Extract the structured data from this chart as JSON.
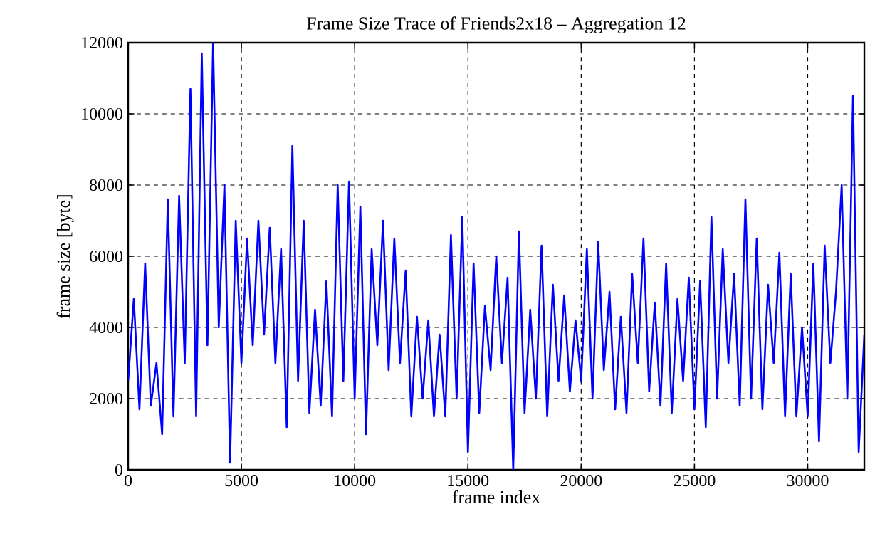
{
  "chart_data": {
    "type": "line",
    "title": "Frame Size Trace of Friends2x18 – Aggregation 12",
    "xlabel": "frame index",
    "ylabel": "frame size [byte]",
    "x": [
      0,
      250,
      500,
      750,
      1000,
      1250,
      1500,
      1750,
      2000,
      2250,
      2500,
      2750,
      3000,
      3250,
      3500,
      3750,
      4000,
      4250,
      4500,
      4750,
      5000,
      5250,
      5500,
      5750,
      6000,
      6250,
      6500,
      6750,
      7000,
      7250,
      7500,
      7750,
      8000,
      8250,
      8500,
      8750,
      9000,
      9250,
      9500,
      9750,
      10000,
      10250,
      10500,
      10750,
      11000,
      11250,
      11500,
      11750,
      12000,
      12250,
      12500,
      12750,
      13000,
      13250,
      13500,
      13750,
      14000,
      14250,
      14500,
      14750,
      15000,
      15250,
      15500,
      15750,
      16000,
      16250,
      16500,
      16750,
      17000,
      17250,
      17500,
      17750,
      18000,
      18250,
      18500,
      18750,
      19000,
      19250,
      19500,
      19750,
      20000,
      20250,
      20500,
      20750,
      21000,
      21250,
      21500,
      21750,
      22000,
      22250,
      22500,
      22750,
      23000,
      23250,
      23500,
      23750,
      24000,
      24250,
      24500,
      24750,
      25000,
      25250,
      25500,
      25750,
      26000,
      26250,
      26500,
      26750,
      27000,
      27250,
      27500,
      27750,
      28000,
      28250,
      28500,
      28750,
      29000,
      29250,
      29500,
      29750,
      30000,
      30250,
      30500,
      30750,
      31000,
      31250,
      31500,
      31750,
      32000,
      32250,
      32500
    ],
    "series": [
      {
        "color": "#0000ff",
        "values": [
          2500,
          4800,
          1700,
          5800,
          1800,
          3000,
          1000,
          7600,
          1500,
          7700,
          3000,
          10700,
          1500,
          11700,
          3500,
          12000,
          4000,
          8000,
          200,
          7000,
          3000,
          6500,
          3500,
          7000,
          3800,
          6800,
          3000,
          6200,
          1200,
          9100,
          2500,
          7000,
          1600,
          4500,
          1800,
          5300,
          1500,
          8000,
          2500,
          8100,
          2000,
          7400,
          1000,
          6200,
          3500,
          7000,
          2800,
          6500,
          3000,
          5600,
          1500,
          4300,
          2000,
          4200,
          1500,
          3800,
          1500,
          6600,
          2000,
          7100,
          500,
          5800,
          1600,
          4600,
          2800,
          6000,
          3000,
          5400,
          0,
          6700,
          1600,
          4500,
          2000,
          6300,
          1500,
          5200,
          2500,
          4900,
          2200,
          4200,
          2500,
          6200,
          2000,
          6400,
          2800,
          5000,
          1700,
          4300,
          1600,
          5500,
          3000,
          6500,
          2200,
          4700,
          1800,
          5800,
          1600,
          4800,
          2500,
          5400,
          1700,
          5300,
          1200,
          7100,
          2000,
          6200,
          3000,
          5500,
          1800,
          7600,
          2000,
          6500,
          1700,
          5200,
          3000,
          6100,
          1500,
          5500,
          1500,
          4000,
          1500,
          5800,
          800,
          6300,
          3000,
          5000,
          8000,
          2000,
          10500,
          500,
          3800
        ]
      }
    ],
    "xlim": [
      0,
      32500
    ],
    "ylim": [
      0,
      12000
    ],
    "xticks": [
      0,
      5000,
      10000,
      15000,
      20000,
      25000,
      30000
    ],
    "yticks": [
      0,
      2000,
      4000,
      6000,
      8000,
      10000,
      12000
    ],
    "grid": true,
    "line_style": "solid",
    "marker": "none"
  }
}
